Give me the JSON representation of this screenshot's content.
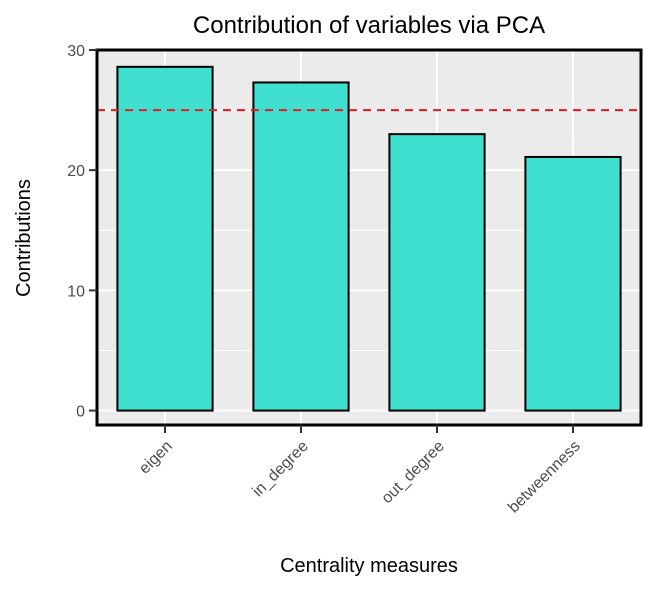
{
  "chart_data": {
    "type": "bar",
    "title": "Contribution of variables via PCA",
    "xlabel": "Centrality measures",
    "ylabel": "Contributions",
    "categories": [
      "eigen",
      "in_degree",
      "out_degree",
      "betweenness"
    ],
    "values": [
      28.6,
      27.3,
      23.0,
      21.1
    ],
    "ylim": [
      -1.2,
      30
    ],
    "yticks": [
      0,
      10,
      20,
      30
    ],
    "reference_line": {
      "value": 25,
      "style": "dashed",
      "color": "#e31a1c"
    },
    "grid": true,
    "colors": {
      "bar_fill": "#40e0d0",
      "bar_stroke": "#000000",
      "panel_background": "#ebebeb",
      "grid": "#ffffff"
    }
  }
}
